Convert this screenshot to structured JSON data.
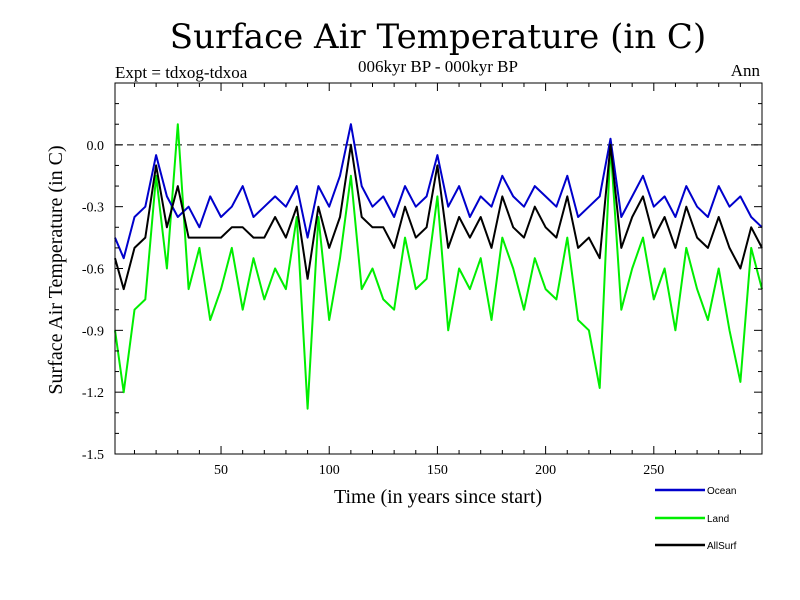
{
  "chart_data": {
    "type": "line",
    "title": "Surface Air Temperature (in C)",
    "subtitle": "006kyr BP - 000kyr BP",
    "left_label": "Expt = tdxog-tdxoa",
    "right_label": "Ann",
    "xlabel": "Time (in years since start)",
    "ylabel": "Surface Air Temperature (in C)",
    "xlim": [
      1,
      300
    ],
    "ylim": [
      -1.5,
      0.3
    ],
    "x_ticks": [
      50,
      100,
      150,
      200,
      250
    ],
    "y_ticks": [
      0.0,
      -0.3,
      -0.6,
      -0.9,
      -1.2,
      -1.5
    ],
    "y_tick_labels": [
      "0.0",
      "-0.3",
      "-0.6",
      "-0.9",
      "-1.2",
      "-1.5"
    ],
    "zero_line": "dashed",
    "grid": false,
    "legend_position": "bottom-right",
    "colors": {
      "Ocean": "#0000cc",
      "Land": "#00ee00",
      "AllSurf": "#000000"
    },
    "series": [
      {
        "name": "Ocean",
        "x": [
          1,
          5,
          10,
          15,
          20,
          25,
          30,
          35,
          40,
          45,
          50,
          55,
          60,
          65,
          70,
          75,
          80,
          85,
          90,
          95,
          100,
          105,
          110,
          115,
          120,
          125,
          130,
          135,
          140,
          145,
          150,
          155,
          160,
          165,
          170,
          175,
          180,
          185,
          190,
          195,
          200,
          205,
          210,
          215,
          220,
          225,
          230,
          235,
          240,
          245,
          250,
          255,
          260,
          265,
          270,
          275,
          280,
          285,
          290,
          295,
          300
        ],
        "values": [
          -0.45,
          -0.55,
          -0.35,
          -0.3,
          -0.05,
          -0.25,
          -0.35,
          -0.3,
          -0.4,
          -0.25,
          -0.35,
          -0.3,
          -0.2,
          -0.35,
          -0.3,
          -0.25,
          -0.3,
          -0.2,
          -0.45,
          -0.2,
          -0.3,
          -0.15,
          0.1,
          -0.2,
          -0.3,
          -0.25,
          -0.35,
          -0.2,
          -0.3,
          -0.25,
          -0.05,
          -0.3,
          -0.2,
          -0.35,
          -0.25,
          -0.3,
          -0.15,
          -0.25,
          -0.3,
          -0.2,
          -0.25,
          -0.3,
          -0.15,
          -0.35,
          -0.3,
          -0.25,
          0.03,
          -0.35,
          -0.25,
          -0.15,
          -0.3,
          -0.25,
          -0.35,
          -0.2,
          -0.3,
          -0.35,
          -0.2,
          -0.3,
          -0.25,
          -0.35,
          -0.4
        ]
      },
      {
        "name": "Land",
        "x": [
          1,
          5,
          10,
          15,
          20,
          25,
          30,
          35,
          40,
          45,
          50,
          55,
          60,
          65,
          70,
          75,
          80,
          85,
          90,
          95,
          100,
          105,
          110,
          115,
          120,
          125,
          130,
          135,
          140,
          145,
          150,
          155,
          160,
          165,
          170,
          175,
          180,
          185,
          190,
          195,
          200,
          205,
          210,
          215,
          220,
          225,
          230,
          235,
          240,
          245,
          250,
          255,
          260,
          265,
          270,
          275,
          280,
          285,
          290,
          295,
          300
        ],
        "values": [
          -0.9,
          -1.2,
          -0.8,
          -0.75,
          -0.15,
          -0.6,
          0.1,
          -0.7,
          -0.5,
          -0.85,
          -0.7,
          -0.5,
          -0.8,
          -0.55,
          -0.75,
          -0.6,
          -0.7,
          -0.35,
          -1.28,
          -0.35,
          -0.85,
          -0.55,
          -0.15,
          -0.7,
          -0.6,
          -0.75,
          -0.8,
          -0.45,
          -0.7,
          -0.65,
          -0.25,
          -0.9,
          -0.6,
          -0.7,
          -0.55,
          -0.85,
          -0.45,
          -0.6,
          -0.8,
          -0.55,
          -0.7,
          -0.75,
          -0.45,
          -0.85,
          -0.9,
          -1.18,
          0.0,
          -0.8,
          -0.6,
          -0.45,
          -0.75,
          -0.6,
          -0.9,
          -0.5,
          -0.7,
          -0.85,
          -0.6,
          -0.9,
          -1.15,
          -0.5,
          -0.7
        ]
      },
      {
        "name": "AllSurf",
        "x": [
          1,
          5,
          10,
          15,
          20,
          25,
          30,
          35,
          40,
          45,
          50,
          55,
          60,
          65,
          70,
          75,
          80,
          85,
          90,
          95,
          100,
          105,
          110,
          115,
          120,
          125,
          130,
          135,
          140,
          145,
          150,
          155,
          160,
          165,
          170,
          175,
          180,
          185,
          190,
          195,
          200,
          205,
          210,
          215,
          220,
          225,
          230,
          235,
          240,
          245,
          250,
          255,
          260,
          265,
          270,
          275,
          280,
          285,
          290,
          295,
          300
        ],
        "values": [
          -0.55,
          -0.7,
          -0.5,
          -0.45,
          -0.1,
          -0.4,
          -0.2,
          -0.45,
          -0.45,
          -0.45,
          -0.45,
          -0.4,
          -0.4,
          -0.45,
          -0.45,
          -0.35,
          -0.45,
          -0.3,
          -0.65,
          -0.3,
          -0.5,
          -0.35,
          0.0,
          -0.35,
          -0.4,
          -0.4,
          -0.5,
          -0.3,
          -0.45,
          -0.4,
          -0.1,
          -0.5,
          -0.35,
          -0.45,
          -0.35,
          -0.5,
          -0.25,
          -0.4,
          -0.45,
          -0.3,
          -0.4,
          -0.45,
          -0.25,
          -0.5,
          -0.45,
          -0.55,
          0.0,
          -0.5,
          -0.35,
          -0.25,
          -0.45,
          -0.35,
          -0.5,
          -0.3,
          -0.45,
          -0.5,
          -0.35,
          -0.5,
          -0.6,
          -0.4,
          -0.5
        ]
      }
    ]
  }
}
